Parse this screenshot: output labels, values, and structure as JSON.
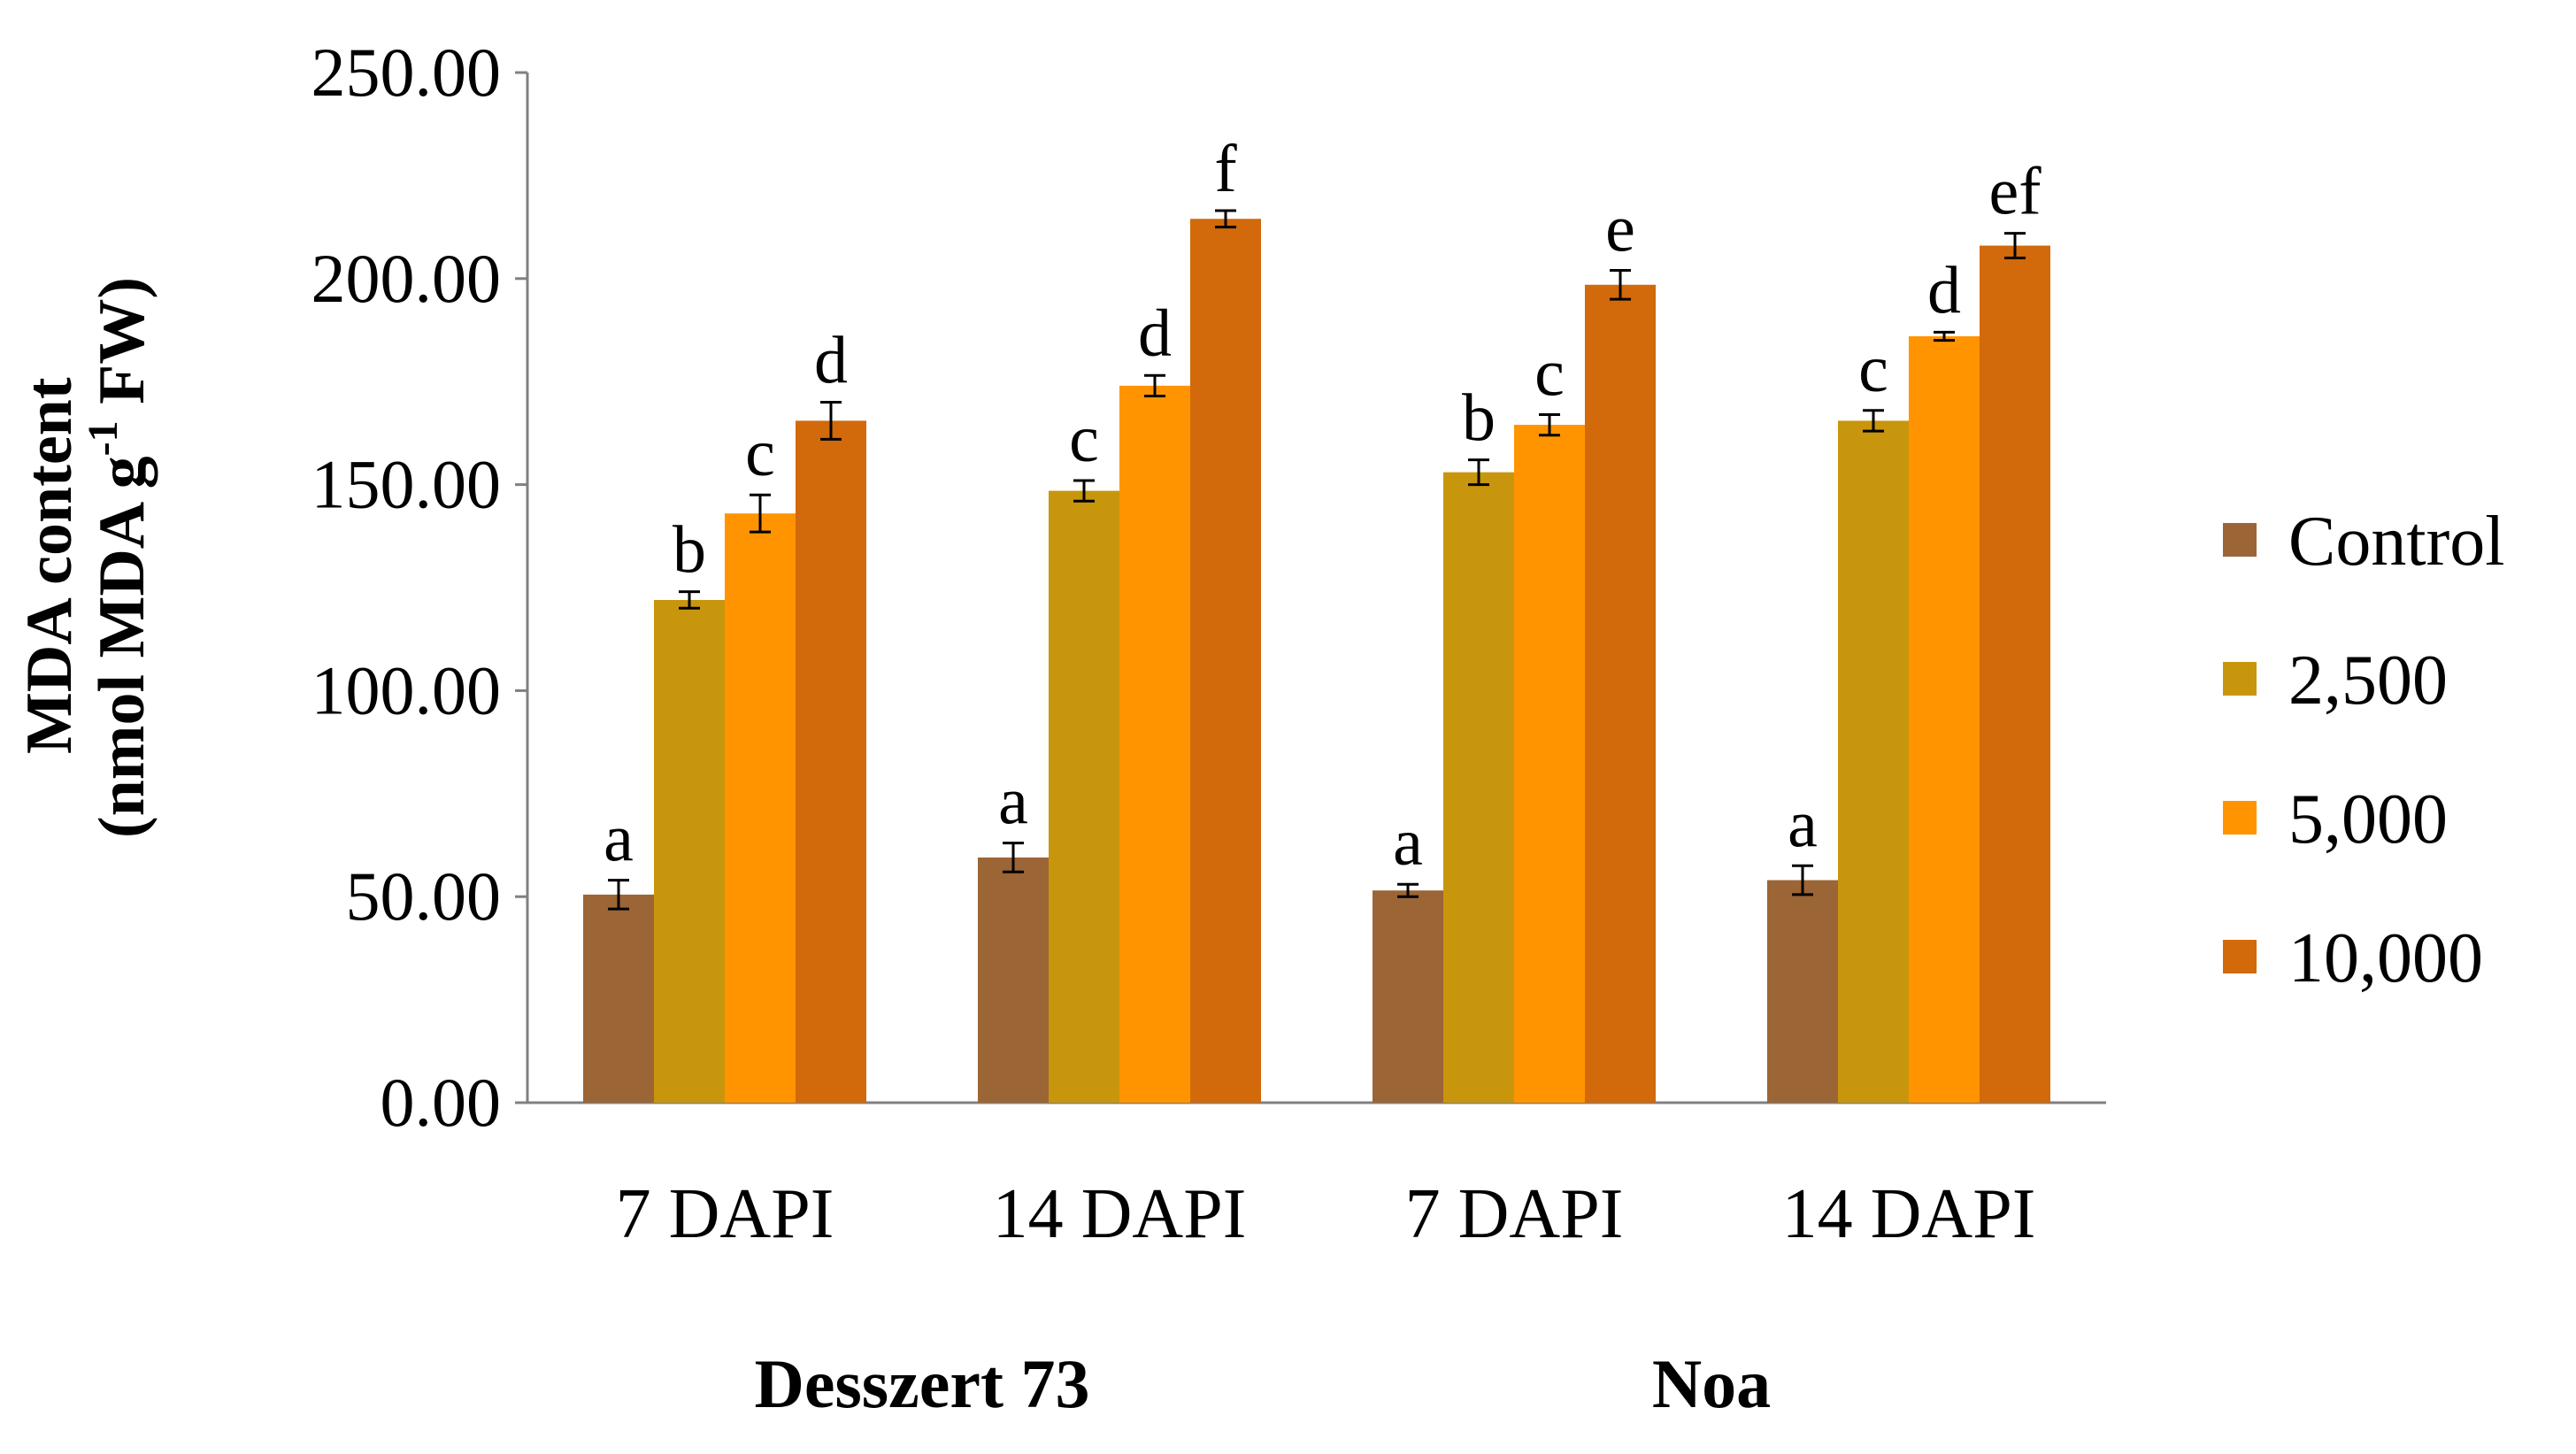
{
  "chart_data": {
    "type": "bar",
    "title": "",
    "ylabel": {
      "line1": "MDA content",
      "line2_pre": "(nmol MDA g",
      "line2_sup": "-1",
      "line2_post": " FW)"
    },
    "xlabel": "",
    "ylim": [
      0,
      250
    ],
    "yticks": [
      "0.00",
      "50.00",
      "100.00",
      "150.00",
      "200.00",
      "250.00"
    ],
    "ytick_values": [
      0,
      50,
      100,
      150,
      200,
      250
    ],
    "categories": [
      "7 DAPI",
      "14 DAPI",
      "7 DAPI",
      "14 DAPI"
    ],
    "groups": [
      {
        "label": "Desszert 73",
        "categories": [
          0,
          1
        ]
      },
      {
        "label": "Noa",
        "categories": [
          2,
          3
        ]
      }
    ],
    "series": [
      {
        "name": "Control",
        "color": "#9B6535",
        "values": [
          50.5,
          59.5,
          51.5,
          54.0
        ],
        "errors": [
          3.5,
          3.5,
          1.5,
          3.5
        ],
        "letters": [
          "a",
          "a",
          "a",
          "a"
        ]
      },
      {
        "name": "2,500",
        "color": "#C8960C",
        "values": [
          122.0,
          148.5,
          153.0,
          165.5
        ],
        "errors": [
          2.0,
          2.5,
          3.0,
          2.5
        ],
        "letters": [
          "b",
          "c",
          "b",
          "c"
        ]
      },
      {
        "name": "5,000",
        "color": "#FF9400",
        "values": [
          143.0,
          174.0,
          164.5,
          186.0
        ],
        "errors": [
          4.5,
          2.5,
          2.5,
          1.0
        ],
        "letters": [
          "c",
          "d",
          "c",
          "d"
        ]
      },
      {
        "name": "10,000",
        "color": "#D2690A",
        "values": [
          165.5,
          214.5,
          198.5,
          208.0
        ],
        "errors": [
          4.5,
          2.0,
          3.5,
          3.0
        ],
        "letters": [
          "d",
          "f",
          "e",
          "ef"
        ]
      }
    ],
    "legend_position": "right",
    "grid": false
  }
}
